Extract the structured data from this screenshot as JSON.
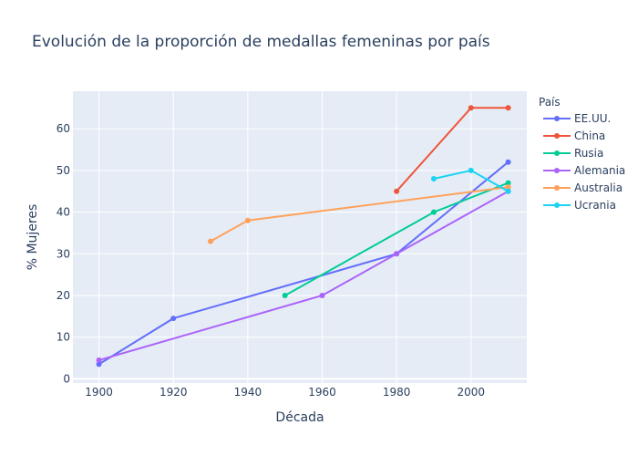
{
  "chart_data": {
    "type": "line",
    "title": "Evolución de la proporción de medallas femeninas por país",
    "xlabel": "Década",
    "ylabel": "% Mujeres",
    "xlim": [
      1893,
      2015
    ],
    "ylim": [
      -1,
      69
    ],
    "xticks": [
      1900,
      1920,
      1940,
      1960,
      1980,
      2000
    ],
    "yticks": [
      0,
      10,
      20,
      30,
      40,
      50,
      60
    ],
    "grid": true,
    "legend": {
      "title": "País",
      "placement": "right"
    },
    "series": [
      {
        "name": "EE.UU.",
        "color": "#636efa",
        "points": [
          [
            1900,
            3.5
          ],
          [
            1920,
            14.5
          ],
          [
            1980,
            30
          ],
          [
            2010,
            52
          ]
        ]
      },
      {
        "name": "China",
        "color": "#ef553b",
        "points": [
          [
            1980,
            45
          ],
          [
            2000,
            65
          ],
          [
            2010,
            65
          ]
        ]
      },
      {
        "name": "Rusia",
        "color": "#00cc96",
        "points": [
          [
            1950,
            20
          ],
          [
            1990,
            40
          ],
          [
            2010,
            47
          ]
        ]
      },
      {
        "name": "Alemania",
        "color": "#ab63fa",
        "points": [
          [
            1900,
            4.5
          ],
          [
            1960,
            20
          ],
          [
            1980,
            30
          ],
          [
            2010,
            45
          ]
        ]
      },
      {
        "name": "Australia",
        "color": "#ffa15a",
        "points": [
          [
            1930,
            33
          ],
          [
            1940,
            38
          ],
          [
            2010,
            46
          ]
        ]
      },
      {
        "name": "Ucrania",
        "color": "#19d3f3",
        "points": [
          [
            1990,
            48
          ],
          [
            2000,
            50
          ],
          [
            2010,
            45
          ]
        ]
      }
    ]
  }
}
